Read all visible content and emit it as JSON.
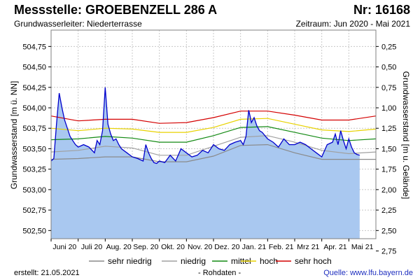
{
  "header": {
    "title": "Messstelle: GROEBENZELL 286 A",
    "number": "Nr: 16168",
    "aquifer": "Grundwasserleiter:   Niederterrasse",
    "period": "Zeitraum: Jun 2020 - Mai 2021"
  },
  "footer": {
    "created": "erstellt:  21.05.2021",
    "raw": "- Rohdaten -",
    "source": "Quelle:  www.lfu.bayern.de"
  },
  "colors": {
    "fill": "#a9c8f0",
    "measured": "#0000cc",
    "sehr_niedrig": "#8a8a8a",
    "niedrig": "#a0a0a0",
    "mittel": "#138a13",
    "hoch": "#e8d200",
    "sehr_hoch": "#d40000",
    "grid": "#c8c8c8"
  },
  "chart_data": {
    "type": "area",
    "ylabel": "Grundwasserstand [m ü. NN]",
    "ylabel_right": "Grundwasserstand [m u. Gelände]",
    "ylim": [
      502.4,
      504.95
    ],
    "yticks": [
      "502,50",
      "502,75",
      "503,00",
      "503,25",
      "503,50",
      "503,75",
      "504,00",
      "504,25",
      "504,50",
      "504,75"
    ],
    "yticks_right": [
      "0,25",
      "0,50",
      "0,75",
      "1,00",
      "1,25",
      "1,50",
      "1,75",
      "2,00",
      "2,25",
      "2,50",
      "2,75"
    ],
    "xlim": [
      0,
      12
    ],
    "x_labels": [
      "Juni 20",
      "Juli 20",
      "Aug. 20",
      "Sep. 20",
      "Okt. 20",
      "Nov. 20",
      "Dez. 20",
      "Jan. 21",
      "Feb. 21",
      "Mrz 21",
      "Apr. 21",
      "Mai 21"
    ],
    "legend_position": "bottom",
    "grid": true,
    "series": [
      {
        "name": "sehr niedrig",
        "key": "sehr_niedrig",
        "x": [
          0,
          1,
          2,
          3,
          4,
          5,
          6,
          7,
          8,
          9,
          10,
          11,
          12
        ],
        "y": [
          503.37,
          503.38,
          503.4,
          503.4,
          503.34,
          503.34,
          503.41,
          503.54,
          503.55,
          503.45,
          503.37,
          503.37,
          503.37
        ]
      },
      {
        "name": "niedrig",
        "key": "niedrig",
        "x": [
          0,
          1,
          2,
          3,
          4,
          5,
          6,
          7,
          8,
          9,
          10,
          11,
          12
        ],
        "y": [
          503.46,
          503.48,
          503.53,
          503.51,
          503.42,
          503.42,
          503.53,
          503.64,
          503.66,
          503.58,
          503.48,
          503.44,
          503.46
        ]
      },
      {
        "name": "mittel",
        "key": "mittel",
        "x": [
          0,
          1,
          2,
          3,
          4,
          5,
          6,
          7,
          8,
          9,
          10,
          11,
          12
        ],
        "y": [
          503.61,
          503.62,
          503.65,
          503.63,
          503.58,
          503.58,
          503.66,
          503.76,
          503.77,
          503.7,
          503.63,
          503.6,
          503.62
        ]
      },
      {
        "name": "hoch",
        "key": "hoch",
        "x": [
          0,
          1,
          2,
          3,
          4,
          5,
          6,
          7,
          8,
          9,
          10,
          11,
          12
        ],
        "y": [
          503.75,
          503.72,
          503.75,
          503.74,
          503.7,
          503.7,
          503.76,
          503.86,
          503.87,
          503.8,
          503.73,
          503.71,
          503.74
        ]
      },
      {
        "name": "sehr hoch",
        "key": "sehr_hoch",
        "x": [
          0,
          1,
          2,
          3,
          4,
          5,
          6,
          7,
          8,
          9,
          10,
          11,
          12
        ],
        "y": [
          503.9,
          503.84,
          503.86,
          503.86,
          503.81,
          503.82,
          503.88,
          503.96,
          503.96,
          503.91,
          503.85,
          503.85,
          503.9
        ]
      },
      {
        "name": "",
        "key": "measured",
        "x": [
          0,
          0.1,
          0.2,
          0.3,
          0.4,
          0.5,
          0.6,
          0.7,
          0.8,
          0.9,
          1.0,
          1.2,
          1.4,
          1.6,
          1.7,
          1.8,
          1.9,
          2.0,
          2.1,
          2.2,
          2.3,
          2.4,
          2.5,
          2.6,
          2.8,
          3.0,
          3.2,
          3.4,
          3.5,
          3.6,
          3.7,
          3.8,
          3.9,
          4.0,
          4.2,
          4.4,
          4.6,
          4.8,
          5.0,
          5.2,
          5.4,
          5.6,
          5.8,
          6.0,
          6.2,
          6.4,
          6.6,
          6.8,
          7.0,
          7.1,
          7.2,
          7.3,
          7.35,
          7.4,
          7.5,
          7.6,
          7.7,
          7.8,
          8.0,
          8.2,
          8.4,
          8.6,
          8.8,
          9.0,
          9.2,
          9.4,
          9.6,
          9.8,
          10.0,
          10.2,
          10.4,
          10.5,
          10.6,
          10.7,
          10.8,
          10.9,
          11.0,
          11.1,
          11.2,
          11.3,
          11.4
        ],
        "y": [
          503.35,
          503.38,
          503.8,
          504.18,
          504.0,
          503.85,
          503.75,
          503.65,
          503.6,
          503.55,
          503.52,
          503.55,
          503.52,
          503.45,
          503.6,
          503.55,
          503.72,
          504.25,
          503.8,
          503.68,
          503.6,
          503.62,
          503.55,
          503.5,
          503.45,
          503.4,
          503.38,
          503.35,
          503.55,
          503.45,
          503.38,
          503.33,
          503.32,
          503.35,
          503.33,
          503.42,
          503.35,
          503.5,
          503.45,
          503.4,
          503.42,
          503.48,
          503.45,
          503.55,
          503.5,
          503.48,
          503.55,
          503.58,
          503.6,
          503.55,
          503.65,
          503.97,
          503.9,
          503.82,
          503.88,
          503.78,
          503.72,
          503.7,
          503.62,
          503.58,
          503.52,
          503.62,
          503.55,
          503.55,
          503.58,
          503.55,
          503.5,
          503.45,
          503.4,
          503.55,
          503.58,
          503.68,
          503.55,
          503.72,
          503.6,
          503.5,
          503.62,
          503.52,
          503.45,
          503.43,
          503.42
        ]
      }
    ]
  }
}
